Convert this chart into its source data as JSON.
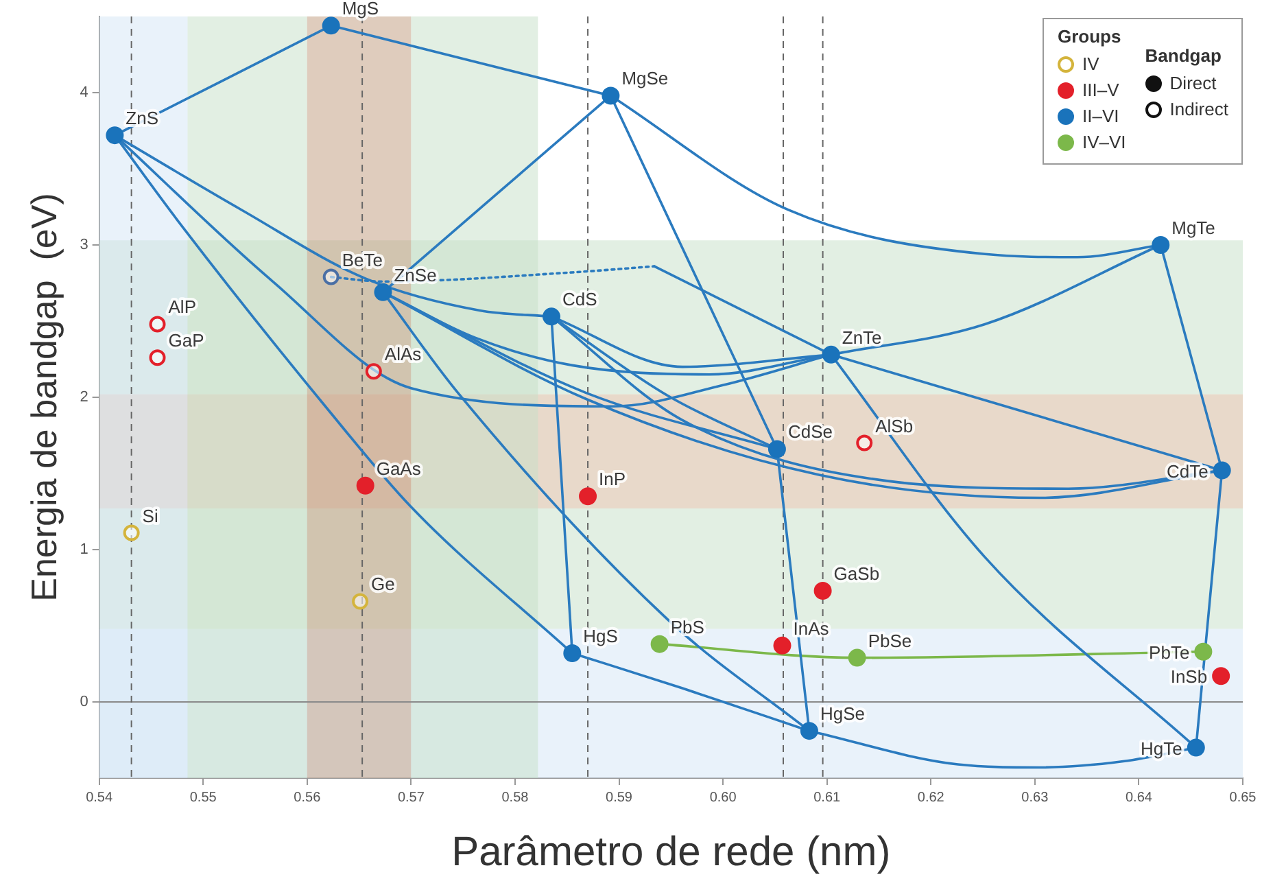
{
  "chart_data": {
    "type": "scatter",
    "xlabel": "Parâmetro de rede (nm)",
    "ylabel": "Energia de bandgap  (eV)",
    "legend_title": "Groups",
    "legend": "top right",
    "grid": false,
    "marker": "circle",
    "xlim": [
      0.54,
      0.65
    ],
    "ylim": [
      -0.5,
      4.5
    ],
    "xticks": [
      {
        "value": 0.54,
        "label": "0.54"
      },
      {
        "value": 0.55,
        "label": "0.55"
      },
      {
        "value": 0.56,
        "label": "0.56"
      },
      {
        "value": 0.57,
        "label": "0.57"
      },
      {
        "value": 0.58,
        "label": "0.58"
      },
      {
        "value": 0.59,
        "label": "0.59"
      },
      {
        "value": 0.6,
        "label": "0.60"
      },
      {
        "value": 0.61,
        "label": "0.61"
      },
      {
        "value": 0.62,
        "label": "0.62"
      },
      {
        "value": 0.63,
        "label": "0.63"
      },
      {
        "value": 0.64,
        "label": "0.64"
      },
      {
        "value": 0.65,
        "label": "0.65"
      }
    ],
    "yticks": [
      0,
      1,
      2,
      3,
      4
    ],
    "bands": [
      {
        "axis": "y",
        "from": -0.5,
        "to": 0.48,
        "color": "#d3e6f6"
      },
      {
        "axis": "y",
        "from": 0.48,
        "to": 1.27,
        "color": "#c5e0c8"
      },
      {
        "axis": "y",
        "from": 1.27,
        "to": 2.02,
        "color": "#d2b496"
      },
      {
        "axis": "y",
        "from": 2.02,
        "to": 3.03,
        "color": "#c5e0c8"
      },
      {
        "axis": "x",
        "from": 0.54,
        "to": 0.5485,
        "color": "#d3e6f6"
      },
      {
        "axis": "x",
        "from": 0.5485,
        "to": 0.56,
        "color": "#c5e0c8"
      },
      {
        "axis": "x",
        "from": 0.56,
        "to": 0.57,
        "color": "#c09a7c"
      },
      {
        "axis": "x",
        "from": 0.57,
        "to": 0.5822,
        "color": "#c5e0c8"
      }
    ],
    "ref_lines": [
      {
        "axis": "y",
        "value": 0,
        "color": "#8a8a8a",
        "line_style": "solid"
      },
      {
        "axis": "x",
        "value": 0.5431,
        "color": "#666666",
        "line_style": "dashed"
      },
      {
        "axis": "x",
        "value": 0.5653,
        "color": "#666666",
        "line_style": "dashed"
      },
      {
        "axis": "x",
        "value": 0.587,
        "color": "#666666",
        "line_style": "dashed"
      },
      {
        "axis": "x",
        "value": 0.6058,
        "color": "#666666",
        "line_style": "dashed"
      },
      {
        "axis": "x",
        "value": 0.6096,
        "color": "#666666",
        "line_style": "dashed"
      }
    ],
    "series": [
      {
        "type": "line",
        "marker": "none",
        "color": "#2b7bbf",
        "x": [
          0.5415,
          0.5623
        ],
        "values": [
          3.72,
          4.44
        ]
      },
      {
        "type": "line",
        "marker": "none",
        "color": "#2b7bbf",
        "x": [
          0.5623,
          0.5892
        ],
        "values": [
          4.44,
          3.98
        ]
      },
      {
        "type": "line",
        "marker": "none",
        "color": "#2b7bbf",
        "x": [
          0.5673,
          0.5892
        ],
        "values": [
          2.69,
          3.98
        ]
      },
      {
        "type": "line",
        "marker": "none",
        "color": "#2b7bbf",
        "x": [
          0.5892,
          0.6063,
          0.6252,
          0.6341,
          0.6421
        ],
        "values": [
          3.98,
          3.23,
          2.94,
          2.92,
          3.0
        ]
      },
      {
        "type": "line",
        "marker": "none",
        "color": "#2b7bbf",
        "x": [
          0.5892,
          0.6052
        ],
        "values": [
          3.98,
          1.66
        ]
      },
      {
        "type": "line",
        "marker": "none",
        "color": "#2b7bbf",
        "x": [
          0.5415,
          0.5537,
          0.5656,
          0.5766,
          0.5835
        ],
        "values": [
          3.72,
          3.23,
          2.78,
          2.57,
          2.53
        ]
      },
      {
        "type": "line",
        "marker": "none",
        "color": "#2b7bbf",
        "x": [
          0.5415,
          0.548,
          0.562,
          0.57,
          0.5855
        ],
        "values": [
          3.72,
          3.12,
          1.92,
          1.28,
          0.32
        ]
      },
      {
        "type": "line",
        "marker": "none",
        "color": "#2b7bbf",
        "x": [
          0.5415,
          0.5567,
          0.57,
          0.5894,
          0.6,
          0.6104
        ],
        "values": [
          3.72,
          2.76,
          2.06,
          1.94,
          2.08,
          2.28
        ]
      },
      {
        "type": "line",
        "marker": "none",
        "color": "#2b7bbf",
        "x": [
          0.5673,
          0.5762,
          0.5855,
          0.5987,
          0.6104
        ],
        "values": [
          2.69,
          2.39,
          2.21,
          2.15,
          2.28
        ]
      },
      {
        "type": "line",
        "marker": "none",
        "color": "#2b7bbf",
        "x": [
          0.5673,
          0.5868,
          0.6052
        ],
        "values": [
          2.69,
          2.03,
          1.66
        ]
      },
      {
        "type": "line",
        "marker": "none",
        "color": "#2b7bbf",
        "x": [
          0.5673,
          0.5868,
          0.6093,
          0.6305,
          0.648
        ],
        "values": [
          2.69,
          1.99,
          1.49,
          1.34,
          1.52
        ]
      },
      {
        "type": "line",
        "marker": "none",
        "color": "#2b7bbf",
        "x": [
          0.5835,
          0.5961,
          0.6159,
          0.6332,
          0.648
        ],
        "values": [
          2.53,
          1.85,
          1.45,
          1.4,
          1.52
        ]
      },
      {
        "type": "line",
        "marker": "none",
        "color": "#2b7bbf",
        "x": [
          0.5835,
          0.5947,
          0.6052
        ],
        "values": [
          2.53,
          2.01,
          1.66
        ]
      },
      {
        "type": "line",
        "marker": "none",
        "color": "#2b7bbf",
        "x": [
          0.5835,
          0.5961,
          0.6104
        ],
        "values": [
          2.53,
          2.2,
          2.28
        ]
      },
      {
        "type": "line",
        "marker": "none",
        "color": "#2b7bbf",
        "x": [
          0.5835,
          0.5855
        ],
        "values": [
          2.53,
          0.32
        ]
      },
      {
        "type": "line",
        "marker": "none",
        "color": "#2b7bbf",
        "x": [
          0.5673,
          0.5745,
          0.5947,
          0.6083
        ],
        "values": [
          2.69,
          2.03,
          0.54,
          -0.19
        ]
      },
      {
        "type": "line",
        "marker": "none",
        "color": "#2b7bbf",
        "x": [
          0.5855,
          0.5961,
          0.6083
        ],
        "values": [
          0.32,
          0.09,
          -0.19
        ]
      },
      {
        "type": "line",
        "marker": "none",
        "color": "#2b7bbf",
        "x": [
          0.6052,
          0.6083
        ],
        "values": [
          1.66,
          -0.19
        ]
      },
      {
        "type": "line",
        "marker": "none",
        "color": "#2b7bbf",
        "x": [
          0.6083,
          0.6226,
          0.6305,
          0.6385,
          0.6455
        ],
        "values": [
          -0.19,
          -0.41,
          -0.43,
          -0.39,
          -0.3
        ]
      },
      {
        "type": "line",
        "marker": "none",
        "color": "#2b7bbf",
        "x": [
          0.6104,
          0.6252,
          0.6455
        ],
        "values": [
          2.28,
          0.95,
          -0.3
        ]
      },
      {
        "type": "line",
        "marker": "none",
        "color": "#2b7bbf",
        "x": [
          0.6104,
          0.648
        ],
        "values": [
          2.28,
          1.52
        ]
      },
      {
        "type": "line",
        "marker": "none",
        "color": "#2b7bbf",
        "x": [
          0.6104,
          0.6252,
          0.6421
        ],
        "values": [
          2.28,
          2.48,
          3.0
        ]
      },
      {
        "type": "line",
        "marker": "none",
        "color": "#2b7bbf",
        "x": [
          0.6421,
          0.648
        ],
        "values": [
          3.0,
          1.52
        ]
      },
      {
        "type": "line",
        "marker": "none",
        "color": "#2b7bbf",
        "x": [
          0.648,
          0.6455
        ],
        "values": [
          1.52,
          -0.3
        ]
      },
      {
        "type": "line",
        "marker": "none",
        "line_style": "dotted",
        "color": "#2b7bbf",
        "x": [
          0.5623,
          0.5673,
          0.5855,
          0.5934
        ],
        "values": [
          2.79,
          2.76,
          2.82,
          2.86
        ]
      },
      {
        "type": "line",
        "marker": "none",
        "color": "#2b7bbf",
        "x": [
          0.5934,
          0.6104
        ],
        "values": [
          2.86,
          2.28
        ]
      },
      {
        "type": "line",
        "marker": "none",
        "color": "#7cb84a",
        "x": [
          0.5939,
          0.6129,
          0.6462
        ],
        "values": [
          0.38,
          0.29,
          0.33
        ]
      },
      {
        "type": "scatter",
        "name": "IV",
        "color": "#d4b43c",
        "marker": "circle-open",
        "x": [
          0.5431,
          0.5651
        ],
        "values": [
          1.11,
          0.66
        ]
      },
      {
        "type": "scatter",
        "name": "III–V",
        "color": "#e3202a",
        "x": [
          0.5656,
          0.587,
          0.6096,
          0.6057,
          0.6479
        ],
        "values": [
          1.42,
          1.35,
          0.73,
          0.37,
          0.17
        ]
      },
      {
        "type": "scatter",
        "color": "#e3202a",
        "marker": "circle-open",
        "x": [
          0.5456,
          0.5456,
          0.5664,
          0.6136
        ],
        "values": [
          2.48,
          2.26,
          2.17,
          1.7
        ]
      },
      {
        "type": "scatter",
        "name": "II–VI",
        "color": "#1a73bb",
        "x": [
          0.5415,
          0.5623,
          0.5892,
          0.6421,
          0.5673,
          0.5835,
          0.6104,
          0.6052,
          0.648,
          0.5855,
          0.6083,
          0.6455
        ],
        "values": [
          3.72,
          4.44,
          3.98,
          3.0,
          2.69,
          2.53,
          2.28,
          1.66,
          1.52,
          0.32,
          -0.19,
          -0.3
        ]
      },
      {
        "type": "scatter",
        "color": "#4a6fa5",
        "marker": "circle-open",
        "x": [
          0.5623
        ],
        "values": [
          2.79
        ]
      },
      {
        "type": "scatter",
        "name": "IV–VI",
        "color": "#7cb84a",
        "x": [
          0.5939,
          0.6129,
          0.6462
        ],
        "values": [
          0.38,
          0.29,
          0.33
        ]
      }
    ],
    "annotations": [
      "Bandgap",
      "Direct",
      "Indirect",
      {
        "text": "ZnS",
        "x": 0.5415,
        "y": 3.72
      },
      {
        "text": "MgS",
        "x": 0.5623,
        "y": 4.44
      },
      {
        "text": "MgSe",
        "x": 0.5892,
        "y": 3.98
      },
      {
        "text": "MgTe",
        "x": 0.6421,
        "y": 3.0
      },
      {
        "text": "ZnSe",
        "x": 0.5673,
        "y": 2.69
      },
      {
        "text": "BeTe",
        "x": 0.5623,
        "y": 2.79
      },
      {
        "text": "CdS",
        "x": 0.5835,
        "y": 2.53
      },
      {
        "text": "ZnTe",
        "x": 0.6104,
        "y": 2.28
      },
      {
        "text": "CdSe",
        "x": 0.6052,
        "y": 1.66
      },
      {
        "text": "CdTe",
        "x": 0.648,
        "y": 1.52
      },
      {
        "text": "AlP",
        "x": 0.5456,
        "y": 2.48
      },
      {
        "text": "GaP",
        "x": 0.5456,
        "y": 2.26
      },
      {
        "text": "AlAs",
        "x": 0.5664,
        "y": 2.17
      },
      {
        "text": "AlSb",
        "x": 0.6136,
        "y": 1.7
      },
      {
        "text": "GaAs",
        "x": 0.5656,
        "y": 1.42
      },
      {
        "text": "InP",
        "x": 0.587,
        "y": 1.35
      },
      {
        "text": "Si",
        "x": 0.5431,
        "y": 1.11
      },
      {
        "text": "Ge",
        "x": 0.5651,
        "y": 0.66
      },
      {
        "text": "GaSb",
        "x": 0.6096,
        "y": 0.73
      },
      {
        "text": "HgS",
        "x": 0.5855,
        "y": 0.32
      },
      {
        "text": "PbS",
        "x": 0.5939,
        "y": 0.38
      },
      {
        "text": "InAs",
        "x": 0.6057,
        "y": 0.37
      },
      {
        "text": "PbSe",
        "x": 0.6129,
        "y": 0.29
      },
      {
        "text": "PbTe",
        "x": 0.6462,
        "y": 0.33
      },
      {
        "text": "InSb",
        "x": 0.6479,
        "y": 0.17
      },
      {
        "text": "HgSe",
        "x": 0.6083,
        "y": -0.19
      },
      {
        "text": "HgTe",
        "x": 0.6455,
        "y": -0.3
      }
    ]
  }
}
